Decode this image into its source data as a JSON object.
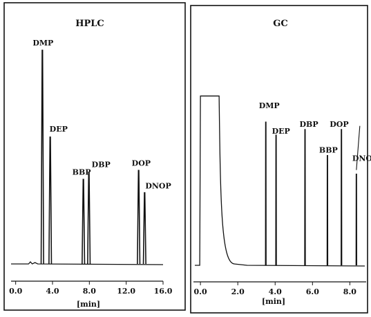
{
  "chart_data": [
    {
      "type": "line",
      "title": "HPLC",
      "xlabel": "[min]",
      "xlim": [
        -0.5,
        16.0
      ],
      "xticks": [
        "0.0",
        "4.0",
        "8.0",
        "12.0",
        "16.0"
      ],
      "xtick_values": [
        0,
        4,
        8,
        12,
        16
      ],
      "ylim": [
        0,
        1
      ],
      "grid": false,
      "peaks": [
        {
          "label": "DMP",
          "x": 2.9,
          "height": 0.96
        },
        {
          "label": "DEP",
          "x": 3.75,
          "height": 0.57
        },
        {
          "label": "BBP",
          "x": 7.35,
          "height": 0.38
        },
        {
          "label": "DBP",
          "x": 7.95,
          "height": 0.41
        },
        {
          "label": "DOP",
          "x": 13.35,
          "height": 0.42
        },
        {
          "label": "DNOP",
          "x": 14.0,
          "height": 0.32
        }
      ]
    },
    {
      "type": "line",
      "title": "GC",
      "xlabel": "[min]",
      "xlim": [
        -0.3,
        8.8
      ],
      "xticks": [
        "0.0",
        "2.0",
        "4.0",
        "6.0",
        "8.0"
      ],
      "xtick_values": [
        0,
        2,
        4,
        6,
        8
      ],
      "ylim": [
        0,
        1
      ],
      "grid": false,
      "solvent_front": {
        "start": 0.0,
        "end": 1.0,
        "height": 0.91
      },
      "peaks": [
        {
          "label": "DMP",
          "x": 3.5,
          "height": 0.77
        },
        {
          "label": "DEP",
          "x": 4.05,
          "height": 0.7
        },
        {
          "label": "DBP",
          "x": 5.6,
          "height": 0.73
        },
        {
          "label": "BBP",
          "x": 6.8,
          "height": 0.59
        },
        {
          "label": "DOP",
          "x": 7.55,
          "height": 0.73
        },
        {
          "label": "DNOP",
          "x": 8.35,
          "height": 0.49
        }
      ]
    }
  ]
}
